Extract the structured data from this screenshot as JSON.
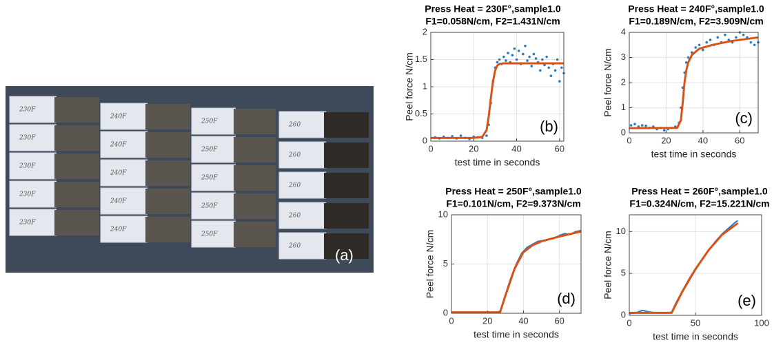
{
  "photo": {
    "label": "(a)",
    "sample_labels": [
      [
        "230F",
        "230F",
        "230F",
        "230F",
        "230F"
      ],
      [
        "240F",
        "240F",
        "240F",
        "240F",
        "240F"
      ],
      [
        "250F",
        "250F",
        "250F",
        "250F",
        "250F"
      ],
      [
        "260",
        "260",
        "260",
        "260",
        "260"
      ]
    ]
  },
  "chart_data": [
    {
      "type": "line",
      "title": "Press Heat = 230F°,sample1.0",
      "subtitle": "F1=0.058N/cm, F2=1.431N/cm",
      "xlabel": "test time in seconds",
      "ylabel": "Peel force N/cm",
      "panel_label": "(b)",
      "xlim": [
        0,
        62
      ],
      "xticks": [
        0,
        20,
        40,
        60
      ],
      "ylim": [
        0,
        2
      ],
      "yticks": [
        0,
        0.5,
        1,
        1.5,
        2
      ],
      "grid": true,
      "series": [
        {
          "color": "#2b7bc0",
          "style": "markers",
          "x": [
            2,
            4,
            6,
            8,
            10,
            12,
            14,
            16,
            18,
            20,
            22,
            24,
            26,
            27,
            28,
            29,
            30,
            31,
            32,
            33,
            34,
            35,
            36,
            37,
            38,
            39,
            40,
            41,
            42,
            43,
            44,
            45,
            46,
            47,
            48,
            49,
            50,
            51,
            52,
            53,
            54,
            55,
            56,
            57,
            58,
            59,
            60,
            61,
            62
          ],
          "values": [
            0.07,
            0.05,
            0.08,
            0.06,
            0.09,
            0.05,
            0.1,
            0.06,
            0.04,
            0.08,
            0.07,
            0.06,
            0.1,
            0.3,
            0.7,
            1.1,
            1.35,
            1.45,
            1.5,
            1.42,
            1.55,
            1.48,
            1.62,
            1.45,
            1.58,
            1.7,
            1.5,
            1.66,
            1.42,
            1.6,
            1.75,
            1.48,
            1.55,
            1.38,
            1.6,
            1.52,
            1.45,
            1.3,
            1.5,
            1.4,
            1.55,
            1.35,
            1.2,
            1.42,
            1.3,
            1.5,
            1.1,
            1.35,
            1.25
          ]
        },
        {
          "color": "#d95319",
          "style": "line",
          "x": [
            0,
            20,
            24,
            26,
            27,
            28,
            29,
            30,
            31,
            32,
            34,
            40,
            62
          ],
          "values": [
            0.058,
            0.06,
            0.08,
            0.2,
            0.45,
            0.8,
            1.1,
            1.3,
            1.39,
            1.42,
            1.431,
            1.431,
            1.431
          ]
        }
      ]
    },
    {
      "type": "line",
      "title": "Press Heat = 240F°,sample1.0",
      "subtitle": "F1=0.189N/cm, F2=3.909N/cm",
      "xlabel": "test time in seconds",
      "ylabel": "Peel force N/cm",
      "panel_label": "(c)",
      "xlim": [
        0,
        70
      ],
      "xticks": [
        0,
        20,
        40,
        60
      ],
      "ylim": [
        0,
        4
      ],
      "yticks": [
        0,
        1,
        2,
        3,
        4
      ],
      "grid": true,
      "series": [
        {
          "color": "#2b7bc0",
          "style": "markers",
          "x": [
            1,
            3,
            5,
            7,
            9,
            11,
            13,
            15,
            17,
            19,
            21,
            23,
            25,
            27,
            28,
            29,
            30,
            31,
            32,
            34,
            36,
            38,
            40,
            42,
            44,
            46,
            48,
            50,
            52,
            54,
            56,
            58,
            60,
            62,
            64,
            66,
            68,
            70
          ],
          "values": [
            0.3,
            0.35,
            0.25,
            0.3,
            0.28,
            0.2,
            0.25,
            0.15,
            0.2,
            0.1,
            0.15,
            0.2,
            0.25,
            0.4,
            1.0,
            1.8,
            2.4,
            2.8,
            3.0,
            3.2,
            3.4,
            3.5,
            3.3,
            3.6,
            3.7,
            3.5,
            3.8,
            3.6,
            3.9,
            3.7,
            3.6,
            3.8,
            4.0,
            3.9,
            3.8,
            3.6,
            3.5,
            3.6
          ]
        },
        {
          "color": "#d95319",
          "style": "line",
          "x": [
            0,
            26,
            28,
            29,
            30,
            31,
            32,
            34,
            38,
            45,
            55,
            70
          ],
          "values": [
            0.189,
            0.2,
            0.5,
            1.2,
            2.0,
            2.5,
            2.8,
            3.1,
            3.35,
            3.5,
            3.65,
            3.8
          ]
        }
      ]
    },
    {
      "type": "line",
      "title": "Press Heat = 250F°,sample1.0",
      "subtitle": "F1=0.101N/cm, F2=9.373N/cm",
      "xlabel": "test time in seconds",
      "ylabel": "Peel force N/cm",
      "panel_label": "(d)",
      "xlim": [
        0,
        72
      ],
      "xticks": [
        0,
        20,
        40,
        60
      ],
      "ylim": [
        0,
        10
      ],
      "yticks": [
        0,
        5,
        10
      ],
      "grid": true,
      "series": [
        {
          "color": "#2b7bc0",
          "style": "line",
          "x": [
            0,
            5,
            10,
            15,
            20,
            25,
            27,
            30,
            33,
            36,
            39,
            42,
            45,
            48,
            51,
            54,
            57,
            60,
            63,
            66,
            69,
            72
          ],
          "values": [
            0.1,
            0.1,
            0.05,
            0.1,
            0.1,
            0.1,
            0.2,
            1.9,
            3.6,
            5.0,
            6.1,
            6.7,
            7.0,
            7.3,
            7.4,
            7.5,
            7.6,
            7.9,
            8.1,
            8.0,
            8.3,
            8.4
          ]
        },
        {
          "color": "#d95319",
          "style": "line",
          "x": [
            0,
            27,
            30,
            35,
            40,
            45,
            50,
            60,
            72
          ],
          "values": [
            0.1,
            0.1,
            1.8,
            4.5,
            6.2,
            6.9,
            7.3,
            7.8,
            8.3
          ]
        }
      ]
    },
    {
      "type": "line",
      "title": "Press Heat = 260F°,sample1.0",
      "subtitle": "F1=0.324N/cm, F2=15.221N/cm",
      "xlabel": "test time in seconds",
      "ylabel": "Peel force N/cm",
      "panel_label": "(e)",
      "xlim": [
        0,
        100
      ],
      "xticks": [
        0,
        50,
        100
      ],
      "ylim": [
        0,
        12
      ],
      "yticks": [
        0,
        5,
        10
      ],
      "grid": true,
      "series": [
        {
          "color": "#2b7bc0",
          "style": "line",
          "x": [
            0,
            5,
            10,
            15,
            20,
            25,
            30,
            32,
            35,
            40,
            45,
            50,
            55,
            60,
            65,
            70,
            75,
            80,
            82
          ],
          "values": [
            0.2,
            0.3,
            0.6,
            0.4,
            0.3,
            0.3,
            0.3,
            0.4,
            1.4,
            2.9,
            4.3,
            5.6,
            6.7,
            7.8,
            8.8,
            9.7,
            10.4,
            11.1,
            11.3
          ]
        },
        {
          "color": "#d95319",
          "style": "line",
          "x": [
            0,
            32,
            40,
            50,
            60,
            70,
            82
          ],
          "values": [
            0.3,
            0.3,
            2.8,
            5.5,
            7.8,
            9.6,
            11
          ]
        }
      ]
    }
  ]
}
